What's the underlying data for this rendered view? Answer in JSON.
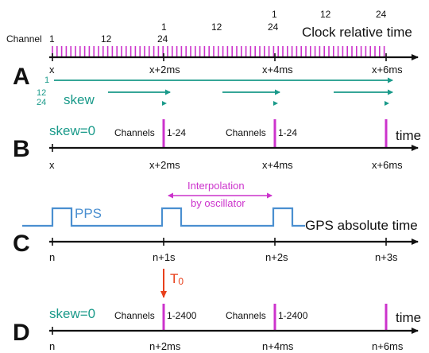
{
  "colors": {
    "axis": "#111111",
    "tick_magenta": "#cc33cc",
    "skew_teal": "#1a9a8a",
    "pps_blue": "#4a8fd0",
    "interp_magenta": "#cc33cc",
    "t0_red": "#e8401c"
  },
  "rows": {
    "A": {
      "letter": "A",
      "title": "Clock relative time",
      "channel_label": "Channel",
      "channel_numbers": {
        "first": "1",
        "c12a": "12",
        "c1b": "1",
        "c24b": "24",
        "c12b": "12",
        "c1c": "1",
        "c24c": "24",
        "c12c": "12",
        "c24d": "24"
      },
      "tick_labels": [
        "x",
        "x+2ms",
        "x+4ms",
        "x+6ms"
      ],
      "skew_channels": [
        "1",
        "12",
        "24"
      ],
      "skew_label": "skew"
    },
    "B": {
      "letter": "B",
      "skew_label": "skew=0",
      "title": "time",
      "channels_labels": [
        "Channels",
        "Channels"
      ],
      "range_labels": [
        "1-24",
        "1-24"
      ],
      "tick_labels": [
        "x",
        "x+2ms",
        "x+4ms",
        "x+6ms"
      ]
    },
    "C": {
      "letter": "C",
      "pps_label": "PPS",
      "title": "GPS absolute time",
      "interp_line1": "Interpolation",
      "interp_line2": "by oscillator",
      "tick_labels": [
        "n",
        "n+1s",
        "n+2s",
        "n+3s"
      ]
    },
    "D": {
      "letter": "D",
      "skew_label": "skew=0",
      "title": "time",
      "t0_main": "T",
      "t0_sub": "0",
      "channels_labels": [
        "Channels",
        "Channels"
      ],
      "range_labels": [
        "1-2400",
        "1-2400"
      ],
      "tick_labels": [
        "n",
        "n+2ms",
        "n+4ms",
        "n+6ms"
      ]
    }
  }
}
